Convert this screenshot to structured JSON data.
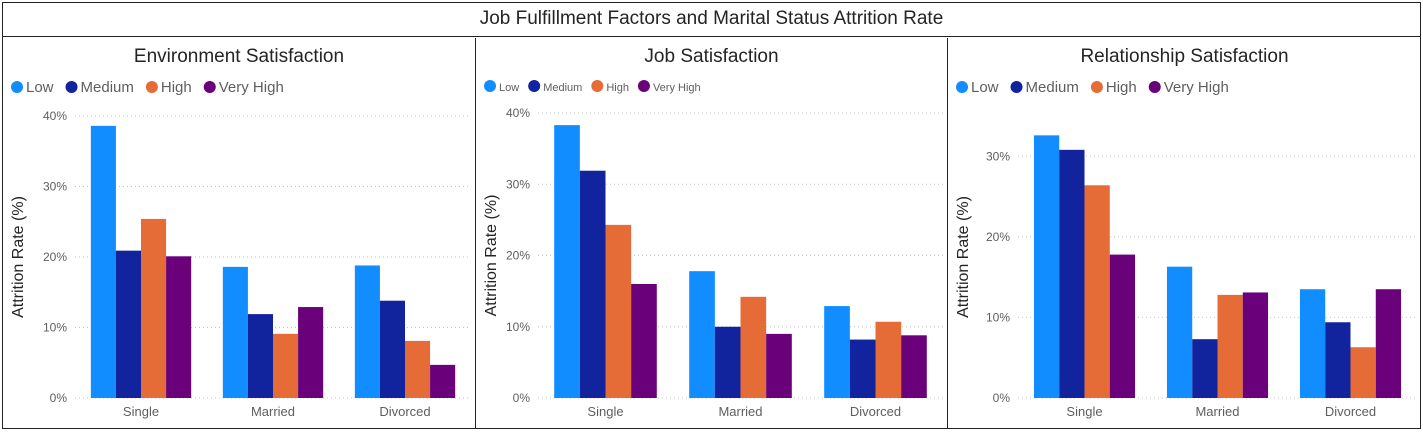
{
  "page_title": "Job Fulfillment Factors and Marital Status Attrition Rate",
  "legend_labels": [
    "Low",
    "Medium",
    "High",
    "Very High"
  ],
  "colors": {
    "Low": "#118DFF",
    "Medium": "#12239E",
    "High": "#E66C37",
    "Very High": "#6B007B"
  },
  "chart_data": [
    {
      "type": "bar",
      "title": "Environment Satisfaction",
      "ylabel": "Attrition Rate (%)",
      "xlabel": "",
      "categories": [
        "Single",
        "Married",
        "Divorced"
      ],
      "ylim": [
        0,
        40
      ],
      "yticks": [
        "0%",
        "10%",
        "20%",
        "30%",
        "40%"
      ],
      "series": [
        {
          "name": "Low",
          "values": [
            38.6,
            18.6,
            18.8
          ]
        },
        {
          "name": "Medium",
          "values": [
            20.9,
            11.9,
            13.8
          ]
        },
        {
          "name": "High",
          "values": [
            25.4,
            9.1,
            8.1
          ]
        },
        {
          "name": "Very High",
          "values": [
            20.1,
            12.9,
            4.7
          ]
        }
      ]
    },
    {
      "type": "bar",
      "title": "Job Satisfaction",
      "ylabel": "Attrition Rate (%)",
      "xlabel": "",
      "categories": [
        "Single",
        "Married",
        "Divorced"
      ],
      "ylim": [
        0,
        40
      ],
      "yticks": [
        "0%",
        "10%",
        "20%",
        "30%",
        "40%"
      ],
      "series": [
        {
          "name": "Low",
          "values": [
            38.3,
            17.8,
            12.9
          ]
        },
        {
          "name": "Medium",
          "values": [
            31.9,
            10.0,
            8.2
          ]
        },
        {
          "name": "High",
          "values": [
            24.3,
            14.2,
            10.7
          ]
        },
        {
          "name": "Very High",
          "values": [
            16.0,
            9.0,
            8.8
          ]
        }
      ]
    },
    {
      "type": "bar",
      "title": "Relationship Satisfaction",
      "ylabel": "Attrition Rate (%)",
      "xlabel": "",
      "categories": [
        "Single",
        "Married",
        "Divorced"
      ],
      "ylim": [
        0,
        35
      ],
      "yticks": [
        "0%",
        "10%",
        "20%",
        "30%"
      ],
      "series": [
        {
          "name": "Low",
          "values": [
            32.6,
            16.3,
            13.5
          ]
        },
        {
          "name": "Medium",
          "values": [
            30.8,
            7.3,
            9.4
          ]
        },
        {
          "name": "High",
          "values": [
            26.4,
            12.8,
            6.3
          ]
        },
        {
          "name": "Very High",
          "values": [
            17.8,
            13.1,
            13.5
          ]
        }
      ]
    }
  ]
}
